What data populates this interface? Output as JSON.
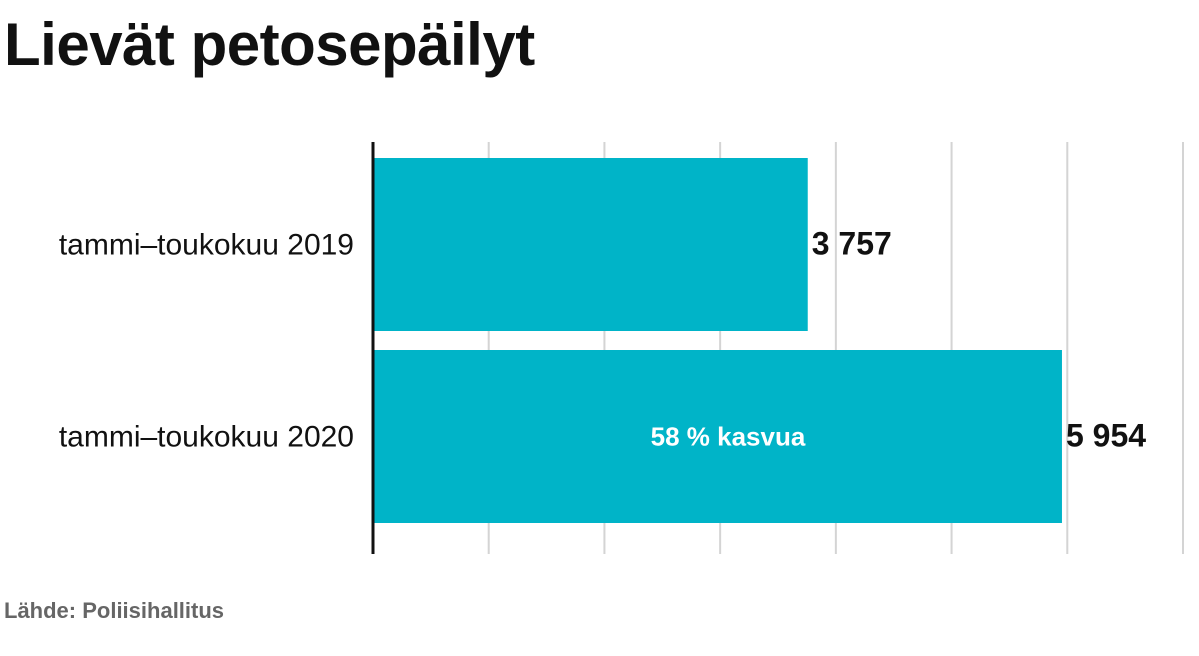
{
  "title": "Lievät petosepäilyt",
  "source": "Lähde: Poliisihallitus",
  "chart_data": {
    "type": "bar",
    "orientation": "horizontal",
    "categories": [
      "tammi–toukokuu 2019",
      "tammi–toukokuu 2020"
    ],
    "values": [
      3757,
      5954
    ],
    "value_labels": [
      "3 757",
      "5 954"
    ],
    "annotations": [
      {
        "category_index": 1,
        "text": "58 % kasvua"
      }
    ],
    "xlim": [
      0,
      7000
    ],
    "grid_step": 1000,
    "grid": true,
    "xlabel": "",
    "ylabel": "",
    "colors": {
      "bar": "#00b4c8",
      "grid": "#d4d4d4",
      "axis": "#111111",
      "annotation_text": "#ffffff",
      "label_text": "#111111"
    }
  }
}
